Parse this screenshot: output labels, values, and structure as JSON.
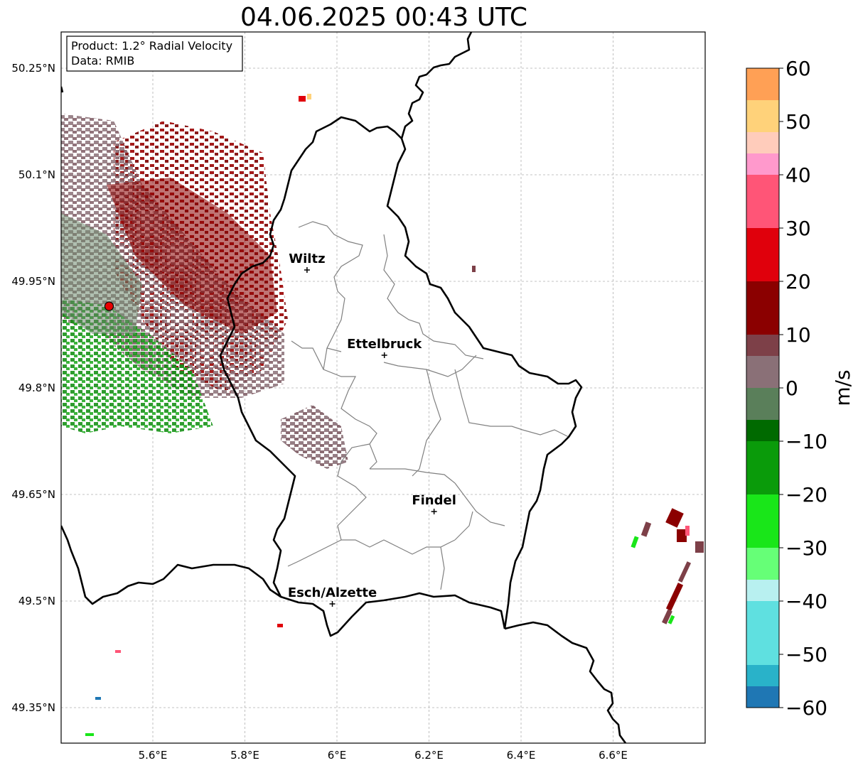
{
  "title": "04.06.2025 00:43 UTC",
  "info": {
    "product": "Product: 1.2° Radial Velocity",
    "source": "Data: RMIB"
  },
  "map": {
    "lon_range": [
      5.4,
      6.8
    ],
    "lat_range": [
      49.3,
      50.3
    ],
    "x_ticks": [
      {
        "value": 5.6,
        "label": "5.6°E"
      },
      {
        "value": 5.8,
        "label": "5.8°E"
      },
      {
        "value": 6.0,
        "label": "6°E"
      },
      {
        "value": 6.2,
        "label": "6.2°E"
      },
      {
        "value": 6.4,
        "label": "6.4°E"
      },
      {
        "value": 6.6,
        "label": "6.6°E"
      }
    ],
    "y_ticks": [
      {
        "value": 50.25,
        "label": "50.25°N"
      },
      {
        "value": 50.1,
        "label": "50.1°N"
      },
      {
        "value": 49.95,
        "label": "49.95°N"
      },
      {
        "value": 49.8,
        "label": "49.8°N"
      },
      {
        "value": 49.65,
        "label": "49.65°N"
      },
      {
        "value": 49.5,
        "label": "49.5°N"
      },
      {
        "value": 49.35,
        "label": "49.35°N"
      }
    ],
    "grid": true,
    "radar_site": {
      "lon": 5.505,
      "lat": 49.915
    },
    "cities": [
      {
        "name": "Wiltz",
        "lon": 5.935,
        "lat": 49.966
      },
      {
        "name": "Ettelbruck",
        "lon": 6.103,
        "lat": 49.846
      },
      {
        "name": "Findel",
        "lon": 6.211,
        "lat": 49.626
      },
      {
        "name": "Esch/Alzette",
        "lon": 5.99,
        "lat": 49.496
      }
    ]
  },
  "colorbar": {
    "label": "m/s",
    "min": -60,
    "max": 60,
    "ticks": [
      {
        "value": 60,
        "label": "60"
      },
      {
        "value": 50,
        "label": "50"
      },
      {
        "value": 40,
        "label": "40"
      },
      {
        "value": 30,
        "label": "30"
      },
      {
        "value": 20,
        "label": "20"
      },
      {
        "value": 10,
        "label": "10"
      },
      {
        "value": 0,
        "label": "0"
      },
      {
        "value": -10,
        "label": "−10"
      },
      {
        "value": -20,
        "label": "−20"
      },
      {
        "value": -30,
        "label": "−30"
      },
      {
        "value": -40,
        "label": "−40"
      },
      {
        "value": -50,
        "label": "−50"
      },
      {
        "value": -60,
        "label": "−60"
      }
    ],
    "stops": [
      {
        "from": -60,
        "to": -56,
        "color": "#1f77b4"
      },
      {
        "from": -56,
        "to": -52,
        "color": "#29b2c9"
      },
      {
        "from": -52,
        "to": -40,
        "color": "#5fe0e0"
      },
      {
        "from": -40,
        "to": -36,
        "color": "#b8f0f0"
      },
      {
        "from": -36,
        "to": -30,
        "color": "#66ff77"
      },
      {
        "from": -30,
        "to": -20,
        "color": "#19e619"
      },
      {
        "from": -20,
        "to": -10,
        "color": "#0a9b0a"
      },
      {
        "from": -10,
        "to": -6,
        "color": "#006a00"
      },
      {
        "from": -6,
        "to": 0,
        "color": "#5a7f5a"
      },
      {
        "from": 0,
        "to": 6,
        "color": "#8a7077"
      },
      {
        "from": 6,
        "to": 10,
        "color": "#7d4048"
      },
      {
        "from": 10,
        "to": 20,
        "color": "#8b0000"
      },
      {
        "from": 20,
        "to": 30,
        "color": "#e0000c"
      },
      {
        "from": 30,
        "to": 40,
        "color": "#ff5577"
      },
      {
        "from": 40,
        "to": 44,
        "color": "#ff99cc"
      },
      {
        "from": 44,
        "to": 48,
        "color": "#ffccbb"
      },
      {
        "from": 48,
        "to": 54,
        "color": "#ffd27a"
      },
      {
        "from": 54,
        "to": 60,
        "color": "#ffa055"
      }
    ]
  }
}
